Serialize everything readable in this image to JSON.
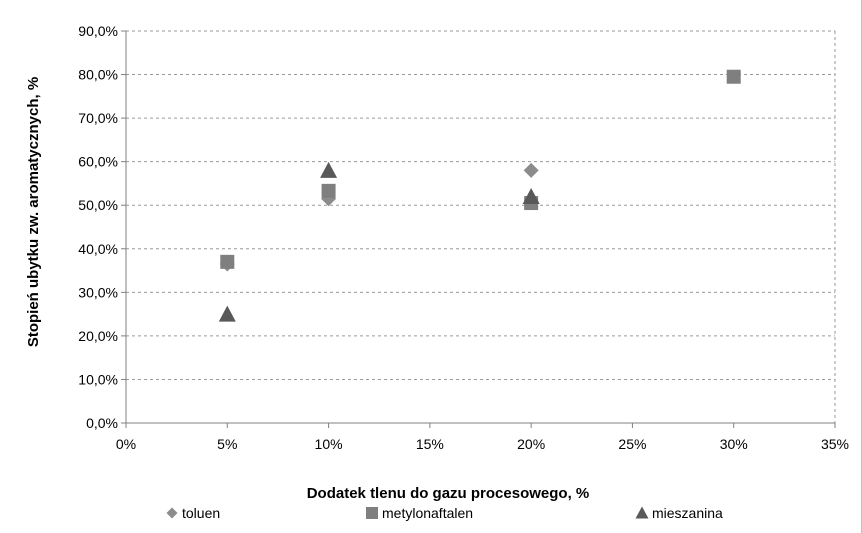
{
  "chart_data": {
    "type": "scatter",
    "title": "",
    "xlabel": "Dodatek tlenu do gazu procesowego, %",
    "ylabel": "Stopień ubytku zw. aromatycznych, %",
    "xlim": [
      0,
      35
    ],
    "ylim": [
      0,
      90
    ],
    "x_ticks": [
      "0%",
      "5%",
      "10%",
      "15%",
      "20%",
      "25%",
      "30%",
      "35%"
    ],
    "y_ticks": [
      "0,0%",
      "10,0%",
      "20,0%",
      "30,0%",
      "40,0%",
      "50,0%",
      "60,0%",
      "70,0%",
      "80,0%",
      "90,0%"
    ],
    "grid": "horizontal dashed",
    "legend_position": "bottom",
    "series": [
      {
        "name": "toluen",
        "marker": "diamond",
        "color": "#8c8c8c",
        "points": [
          [
            5,
            36.5
          ],
          [
            10,
            51.5
          ],
          [
            20,
            58.0
          ]
        ]
      },
      {
        "name": "metylonaftalen",
        "marker": "square",
        "color": "#7f7f7f",
        "points": [
          [
            5,
            37.0
          ],
          [
            10,
            53.3
          ],
          [
            20,
            50.5
          ],
          [
            30,
            79.5
          ]
        ]
      },
      {
        "name": "mieszanina",
        "marker": "triangle",
        "color": "#595959",
        "points": [
          [
            5,
            25.0
          ],
          [
            10,
            58.0
          ],
          [
            20,
            52.0
          ]
        ]
      }
    ]
  }
}
